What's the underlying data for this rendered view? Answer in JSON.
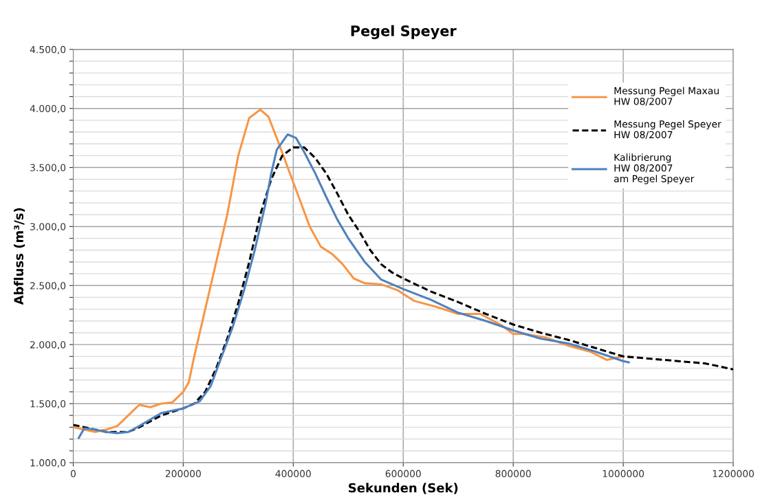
{
  "chart_data": {
    "type": "line",
    "title": "Pegel Speyer",
    "xlabel": "Sekunden (Sek)",
    "ylabel": "Abfluss (m³/s)",
    "xlim": [
      0,
      1200000
    ],
    "xticks": [
      0,
      200000,
      400000,
      600000,
      800000,
      1000000,
      1200000
    ],
    "ylim": [
      1000,
      4500
    ],
    "yticks": [
      {
        "value": 1000,
        "label": "1.000,0"
      },
      {
        "value": 1100,
        "label": null
      },
      {
        "value": 1200,
        "label": null
      },
      {
        "value": 1300,
        "label": null
      },
      {
        "value": 1400,
        "label": null
      },
      {
        "value": 1500,
        "label": "1.500,0"
      },
      {
        "value": 1600,
        "label": null
      },
      {
        "value": 1700,
        "label": null
      },
      {
        "value": 1800,
        "label": null
      },
      {
        "value": 1900,
        "label": null
      },
      {
        "value": 2000,
        "label": "2.000,0"
      },
      {
        "value": 2100,
        "label": null
      },
      {
        "value": 2200,
        "label": null
      },
      {
        "value": 2300,
        "label": null
      },
      {
        "value": 2400,
        "label": null
      },
      {
        "value": 2500,
        "label": "2.500,0"
      },
      {
        "value": 2600,
        "label": null
      },
      {
        "value": 2700,
        "label": null
      },
      {
        "value": 2800,
        "label": null
      },
      {
        "value": 2900,
        "label": null
      },
      {
        "value": 3000,
        "label": "3.000,0"
      },
      {
        "value": 3100,
        "label": null
      },
      {
        "value": 3200,
        "label": null
      },
      {
        "value": 3300,
        "label": null
      },
      {
        "value": 3400,
        "label": null
      },
      {
        "value": 3500,
        "label": "3.500,0"
      },
      {
        "value": 3600,
        "label": null
      },
      {
        "value": 3700,
        "label": null
      },
      {
        "value": 3800,
        "label": null
      },
      {
        "value": 3900,
        "label": null
      },
      {
        "value": 4000,
        "label": "4.000,0"
      },
      {
        "value": 4100,
        "label": null
      },
      {
        "value": 4200,
        "label": null
      },
      {
        "value": 4300,
        "label": null
      },
      {
        "value": 4400,
        "label": null
      },
      {
        "value": 4500,
        "label": "4.500,0"
      }
    ],
    "grid": true,
    "legend": "top right",
    "series": [
      {
        "name": "Messung Pegel Maxau\nHW 08/2007",
        "color": "#f79646",
        "line_style": "solid",
        "x": [
          0,
          20000,
          40000,
          60000,
          80000,
          100000,
          120000,
          140000,
          160000,
          180000,
          200000,
          210000,
          220000,
          240000,
          260000,
          280000,
          300000,
          320000,
          340000,
          355000,
          370000,
          390000,
          410000,
          430000,
          450000,
          470000,
          490000,
          510000,
          530000,
          560000,
          590000,
          620000,
          660000,
          700000,
          740000,
          780000,
          800000,
          820000,
          860000,
          900000,
          940000,
          970000,
          1000000
        ],
        "values": [
          1300,
          1280,
          1260,
          1280,
          1310,
          1400,
          1490,
          1470,
          1500,
          1510,
          1600,
          1680,
          1900,
          2300,
          2700,
          3100,
          3600,
          3920,
          3990,
          3930,
          3750,
          3500,
          3250,
          3000,
          2830,
          2770,
          2680,
          2560,
          2520,
          2510,
          2460,
          2370,
          2320,
          2260,
          2260,
          2160,
          2090,
          2090,
          2060,
          1990,
          1940,
          1870,
          1900
        ]
      },
      {
        "name": "Messung Pegel Speyer\nHW 08/2007",
        "color": "#000000",
        "line_style": "dashed",
        "x": [
          0,
          40000,
          60000,
          100000,
          120000,
          160000,
          200000,
          220000,
          240000,
          260000,
          280000,
          300000,
          320000,
          340000,
          360000,
          380000,
          400000,
          420000,
          440000,
          460000,
          480000,
          500000,
          520000,
          540000,
          560000,
          580000,
          600000,
          650000,
          700000,
          750000,
          800000,
          850000,
          900000,
          950000,
          1000000,
          1050000,
          1100000,
          1150000,
          1200000
        ],
        "values": [
          1320,
          1280,
          1260,
          1260,
          1300,
          1400,
          1460,
          1500,
          1600,
          1800,
          2050,
          2350,
          2700,
          3100,
          3400,
          3600,
          3670,
          3670,
          3580,
          3450,
          3280,
          3100,
          2960,
          2800,
          2680,
          2610,
          2560,
          2450,
          2360,
          2260,
          2170,
          2100,
          2040,
          1970,
          1900,
          1880,
          1860,
          1840,
          1790
        ]
      },
      {
        "name": "Kalibrierung\nHW 08/2007\nam Pegel Speyer",
        "color": "#4f81bd",
        "line_style": "solid",
        "x": [
          10000,
          20000,
          40000,
          60000,
          80000,
          100000,
          120000,
          160000,
          200000,
          230000,
          250000,
          270000,
          290000,
          310000,
          330000,
          350000,
          360000,
          370000,
          390000,
          405000,
          420000,
          440000,
          460000,
          480000,
          500000,
          530000,
          560000,
          600000,
          650000,
          700000,
          750000,
          800000,
          850000,
          900000,
          950000,
          1000000,
          1010000
        ],
        "values": [
          1210,
          1290,
          1280,
          1260,
          1250,
          1260,
          1310,
          1420,
          1460,
          1520,
          1650,
          1900,
          2150,
          2450,
          2800,
          3200,
          3450,
          3650,
          3780,
          3750,
          3630,
          3450,
          3250,
          3060,
          2900,
          2700,
          2550,
          2470,
          2380,
          2270,
          2200,
          2120,
          2050,
          2010,
          1940,
          1860,
          1850
        ]
      }
    ]
  }
}
